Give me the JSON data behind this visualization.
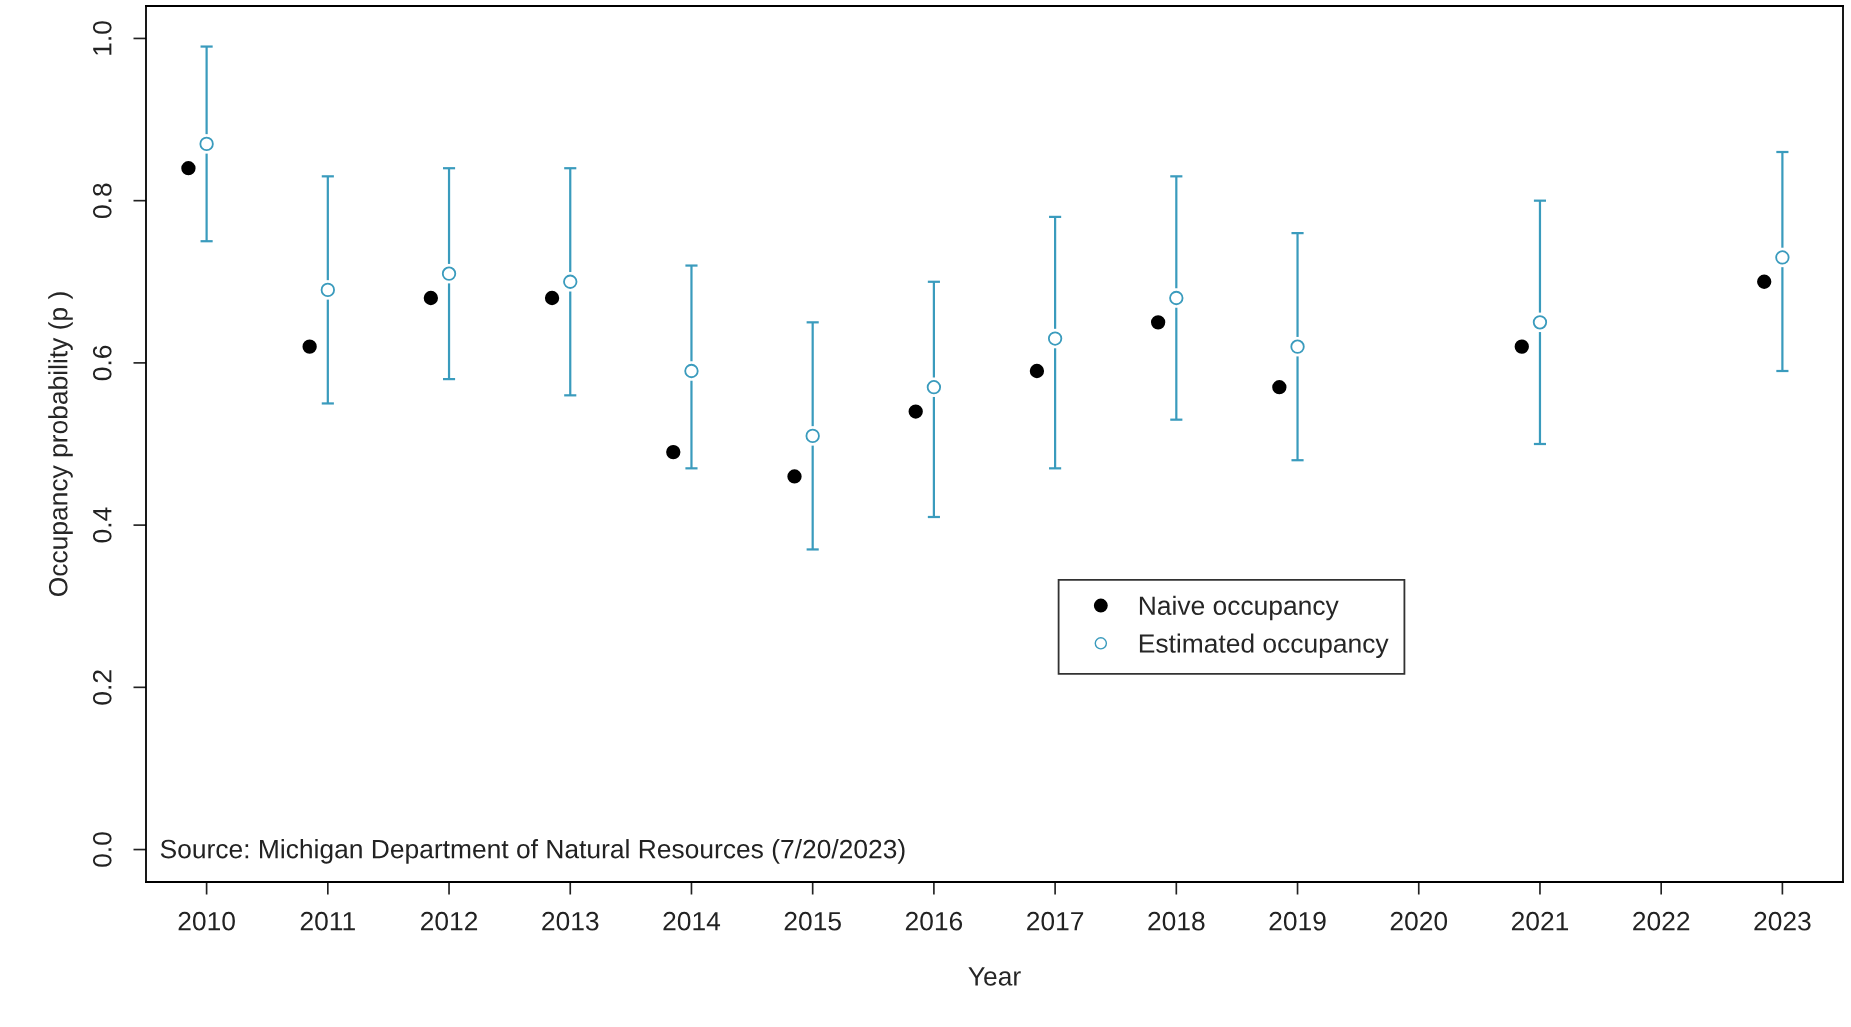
{
  "chart_data": {
    "type": "scatter",
    "xlabel": "Year",
    "ylabel": "Occupancy probability (p )",
    "xlim": [
      2009.5,
      2023.5
    ],
    "xticks": [
      2010,
      2011,
      2012,
      2013,
      2014,
      2015,
      2016,
      2017,
      2018,
      2019,
      2020,
      2021,
      2022,
      2023
    ],
    "ylim": [
      -0.04,
      1.04
    ],
    "yticks": [
      {
        "value": 0,
        "label": "0.0"
      },
      0.2,
      0.4,
      0.6,
      0.8,
      {
        "value": 1,
        "label": "1.0"
      }
    ],
    "grid": false,
    "legend": "right",
    "marker": "circle",
    "series": [
      {
        "name": "Naive occupancy",
        "color": "#000000",
        "x": [
          2009.85,
          2010.85,
          2011.85,
          2012.85,
          2013.85,
          2014.85,
          2015.85,
          2016.85,
          2017.85,
          2018.85,
          2020.85,
          2022.85
        ],
        "values": [
          0.84,
          0.62,
          0.68,
          0.68,
          0.49,
          0.46,
          0.54,
          0.59,
          0.65,
          0.57,
          0.62,
          0.7
        ]
      },
      {
        "name": "Estimated occupancy",
        "color": "#3a9bbd",
        "x": [
          2010,
          2011,
          2012,
          2013,
          2014,
          2015,
          2016,
          2017,
          2018,
          2019,
          2021,
          2023
        ],
        "values": [
          0.87,
          0.69,
          0.71,
          0.7,
          0.59,
          0.51,
          0.57,
          0.63,
          0.68,
          0.62,
          0.65,
          0.73
        ],
        "errors": [
          [
            0.75,
            0.99
          ],
          [
            0.55,
            0.83
          ],
          [
            0.58,
            0.84
          ],
          [
            0.56,
            0.84
          ],
          [
            0.47,
            0.72
          ],
          [
            0.37,
            0.65
          ],
          [
            0.41,
            0.7
          ],
          [
            0.47,
            0.78
          ],
          [
            0.53,
            0.83
          ],
          [
            0.48,
            0.76
          ],
          [
            0.5,
            0.8
          ],
          [
            0.59,
            0.86
          ]
        ]
      }
    ],
    "annotations": [
      "Source: Michigan Department of Natural Resources (7/20/2023)"
    ]
  }
}
